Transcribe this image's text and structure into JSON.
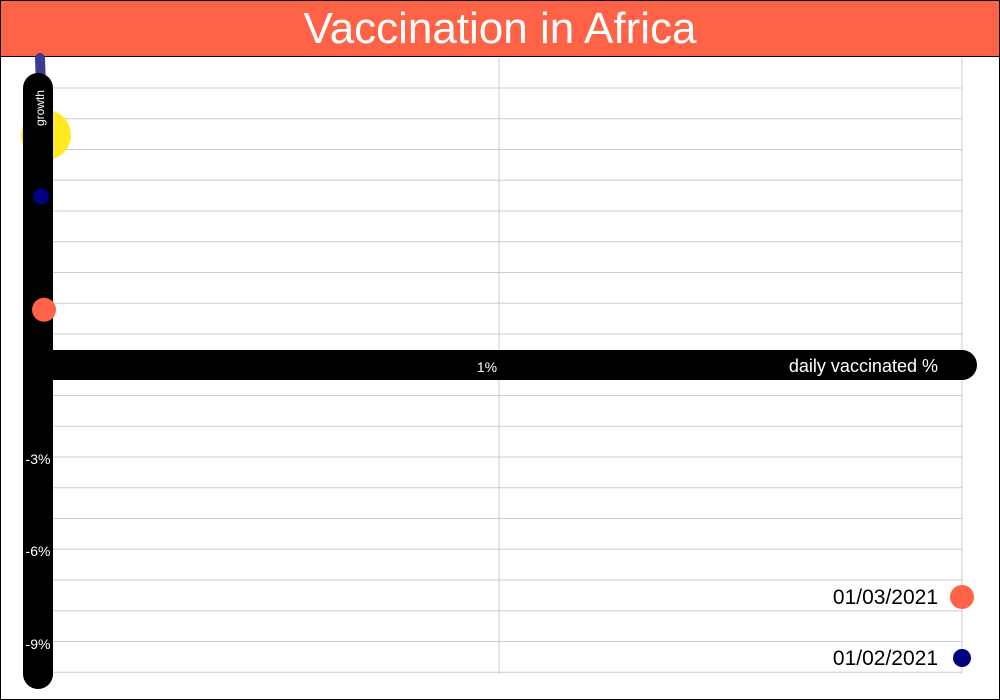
{
  "chart_data": {
    "type": "scatter",
    "title": "Vaccination in Africa",
    "xlabel": "daily vaccinated %",
    "ylabel": "growth",
    "x_ticks": [
      "1%"
    ],
    "y_ticks": [
      "-3%",
      "-6%",
      "-9%"
    ],
    "colors": {
      "title_bg": "#ff6347",
      "axis": "#000000",
      "grid": "#cccccc",
      "trail_start": "#3b3b8f",
      "trail_mid": "#a6e22e",
      "trail_end": "#ffe923"
    },
    "series": [
      {
        "name": "01/03/2021",
        "color": "#ff6347",
        "points": [
          {
            "x": 0.0,
            "y": 1.8
          }
        ]
      },
      {
        "name": "01/02/2021",
        "color": "#000080",
        "points": [
          {
            "x": 0.0,
            "y": 5.5
          }
        ]
      }
    ],
    "trail": [
      {
        "x": 0.0,
        "y": 12.0
      },
      {
        "x": 0.0,
        "y": 7.5
      },
      {
        "x": 0.0,
        "y": 5.5
      },
      {
        "x": 0.0,
        "y": 3.5
      },
      {
        "x": 0.0,
        "y": 1.5
      }
    ],
    "legend_position": "bottom-right",
    "grid": true
  }
}
